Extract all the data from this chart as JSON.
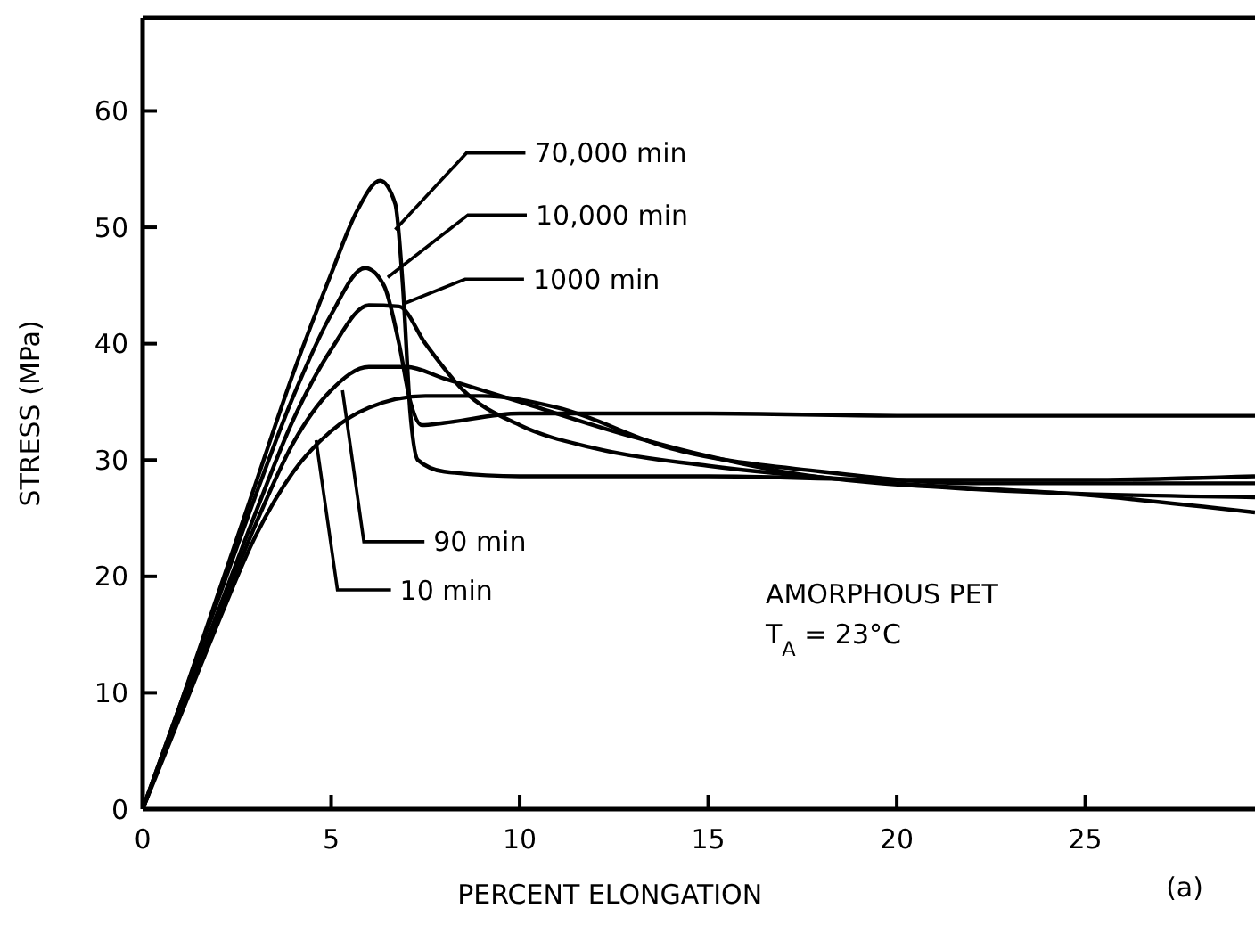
{
  "chart_data": {
    "type": "line",
    "xlabel": "PERCENT ELONGATION",
    "ylabel": "STRESS (MPa)",
    "xlim": [
      0,
      29.5
    ],
    "ylim": [
      0,
      68
    ],
    "xticks": [
      0,
      5,
      10,
      15,
      20,
      25
    ],
    "yticks": [
      0,
      10,
      20,
      30,
      40,
      50,
      60
    ],
    "grid": false,
    "marker": "none",
    "line_style": "solid",
    "series": [
      {
        "color": "#000000",
        "x": [
          0,
          1,
          2,
          3,
          4,
          5,
          5.7,
          6.3,
          6.7,
          6.9,
          7.1,
          7.3,
          8,
          10,
          15,
          20,
          25,
          29.5
        ],
        "values": [
          0,
          9,
          18.5,
          28,
          37.5,
          46,
          51.5,
          54,
          52,
          45,
          34,
          30,
          29,
          28.6,
          28.6,
          28.3,
          28.3,
          28.6
        ]
      },
      {
        "color": "#000000",
        "x": [
          0,
          1,
          2,
          3,
          4,
          5,
          5.9,
          6.4,
          6.8,
          7.1,
          7.4,
          8,
          10,
          15,
          20,
          25,
          29.5
        ],
        "values": [
          0,
          9,
          18,
          27,
          35.5,
          42.5,
          46.5,
          45,
          40,
          35,
          33,
          33.2,
          34,
          34,
          33.8,
          33.8,
          33.8
        ]
      },
      {
        "color": "#000000",
        "x": [
          0,
          1,
          2,
          3,
          4,
          5,
          6,
          6.8,
          7.5,
          8.5,
          10,
          12,
          15,
          20,
          25,
          29.5
        ],
        "values": [
          0,
          8.5,
          17,
          25.5,
          33.5,
          39.5,
          43.3,
          43.2,
          40,
          36,
          33,
          31,
          29.5,
          28,
          27,
          25.5
        ]
      },
      {
        "color": "#000000",
        "x": [
          0,
          1,
          2,
          3,
          4,
          5,
          6,
          7,
          8,
          10,
          13,
          17,
          22,
          29.5
        ],
        "values": [
          0,
          8.5,
          16.5,
          24.5,
          31.5,
          36,
          38,
          38,
          37,
          35,
          32,
          29,
          27.5,
          26.8
        ]
      },
      {
        "color": "#000000",
        "x": [
          0,
          1,
          2,
          3,
          4,
          5,
          6,
          7.5,
          9,
          11,
          14,
          18,
          22,
          29.5
        ],
        "values": [
          0,
          8,
          16,
          23.5,
          29,
          32.5,
          34.5,
          35.5,
          35.5,
          34.5,
          31,
          29,
          28,
          28
        ]
      }
    ],
    "annotations": [
      {
        "text": "70,000 min",
        "x": 6.7,
        "y": 49.8
      },
      {
        "text": "10,000 min",
        "x": 6.5,
        "y": 45.7
      },
      {
        "text": "1000 min",
        "x": 6.9,
        "y": 43.4
      },
      {
        "text": "90 min",
        "x": 5.3,
        "y": 36
      },
      {
        "text": "10 min",
        "x": 4.6,
        "y": 31.7
      },
      "AMORPHOUS PET",
      "T$_{A}$ = 23°C",
      "(a)"
    ]
  }
}
